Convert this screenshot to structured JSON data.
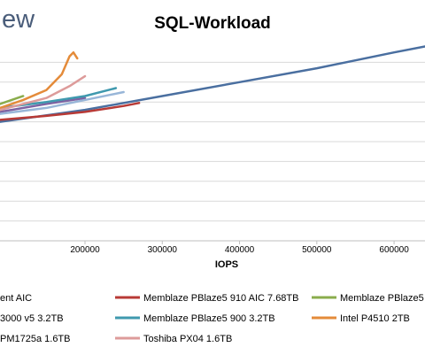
{
  "brand_fragment": "ew",
  "chart_data": {
    "type": "line",
    "title": "SQL-Workload",
    "xlabel": "IOPS",
    "ylabel": "",
    "grid": true,
    "legend_position": "bottom",
    "xlim": [
      90000,
      640000
    ],
    "ylim": [
      0,
      10
    ],
    "x_ticks": [
      200000,
      300000,
      400000,
      500000,
      600000
    ],
    "x_tick_labels": [
      "200000",
      "300000",
      "400000",
      "500000",
      "600000"
    ],
    "series": [
      {
        "name": "ent AIC",
        "color": "#4a6fa0",
        "points": [
          [
            90000,
            6.0
          ],
          [
            200000,
            6.6
          ],
          [
            300000,
            7.3
          ],
          [
            400000,
            8.0
          ],
          [
            500000,
            8.7
          ],
          [
            600000,
            9.5
          ],
          [
            640000,
            9.8
          ]
        ]
      },
      {
        "name": "Memblaze PBlaze5 910 AIC 7.68TB",
        "color": "#b83a36",
        "points": [
          [
            90000,
            6.1
          ],
          [
            150000,
            6.3
          ],
          [
            200000,
            6.5
          ],
          [
            250000,
            6.8
          ],
          [
            270000,
            6.95
          ]
        ]
      },
      {
        "name": "Memblaze PBlaze5",
        "color": "#8aac4c",
        "points": [
          [
            90000,
            6.9
          ],
          [
            120000,
            7.3
          ]
        ]
      },
      {
        "name": "3000 v5 3.2TB",
        "color": "#7d62a2",
        "points": [
          [
            90000,
            6.5
          ],
          [
            150000,
            6.9
          ],
          [
            200000,
            7.2
          ]
        ]
      },
      {
        "name": "Memblaze PBlaze5 900 3.2TB",
        "color": "#3f99ae",
        "points": [
          [
            90000,
            6.7
          ],
          [
            150000,
            7.0
          ],
          [
            200000,
            7.3
          ],
          [
            240000,
            7.7
          ]
        ]
      },
      {
        "name": "Intel P4510 2TB",
        "color": "#e48b3a",
        "points": [
          [
            90000,
            6.7
          ],
          [
            120000,
            7.1
          ],
          [
            150000,
            7.6
          ],
          [
            170000,
            8.4
          ],
          [
            180000,
            9.3
          ],
          [
            185000,
            9.5
          ],
          [
            190000,
            9.2
          ]
        ]
      },
      {
        "name": "PM1725a 1.6TB",
        "color": "#98b6d8",
        "points": [
          [
            90000,
            6.4
          ],
          [
            150000,
            6.7
          ],
          [
            200000,
            7.1
          ],
          [
            250000,
            7.5
          ]
        ]
      },
      {
        "name": "Toshiba PX04 1.6TB",
        "color": "#dd9b9a",
        "points": [
          [
            90000,
            6.6
          ],
          [
            150000,
            7.2
          ],
          [
            180000,
            7.8
          ],
          [
            200000,
            8.3
          ]
        ]
      }
    ]
  }
}
